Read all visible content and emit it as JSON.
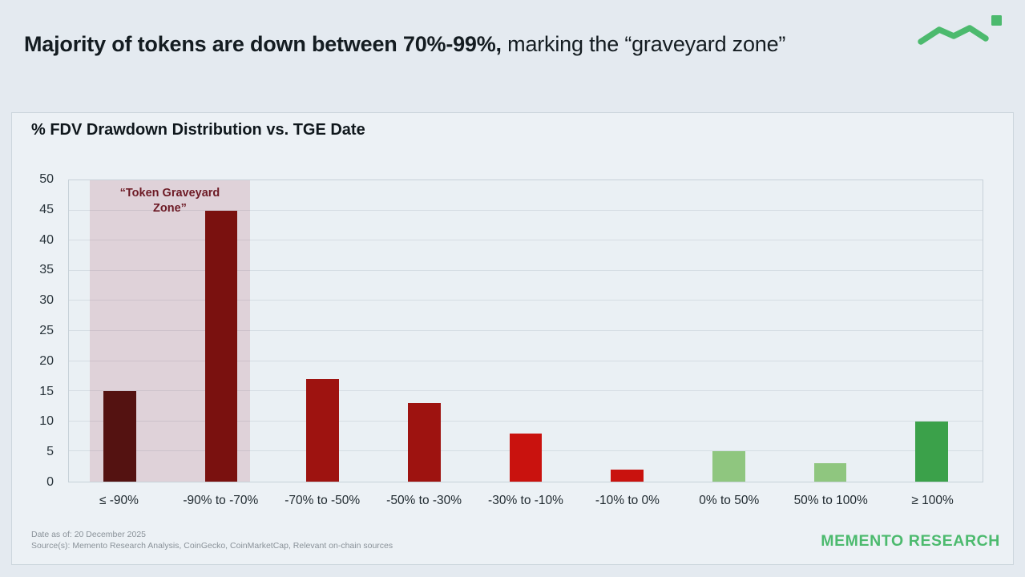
{
  "header": {
    "title_bold": "Majority of tokens are down between 70%-99%,",
    "title_regular": " marking the “graveyard zone”"
  },
  "brand": {
    "name": "MEMENTO RESEARCH",
    "accent_color": "#4cba6e",
    "logo_icon": "zigzag-line-with-square"
  },
  "footnotes": {
    "date": "Date as of: 20 December 2025",
    "sources": "Source(s): Memento Research Analysis, CoinGecko, CoinMarketCap, Relevant on-chain sources"
  },
  "chart_data": {
    "type": "bar",
    "title": "% FDV Drawdown Distribution vs. TGE Date",
    "categories": [
      "≤ -90%",
      "-90% to -70%",
      "-70% to -50%",
      "-50% to -30%",
      "-30% to -10%",
      "-10% to 0%",
      "0% to 50%",
      "50% to 100%",
      "≥ 100%"
    ],
    "values": [
      15,
      45,
      17,
      13,
      8,
      2,
      5,
      3,
      10
    ],
    "bar_colors": [
      "#541211",
      "#7a110f",
      "#9e1310",
      "#9e1310",
      "#c9120e",
      "#c9120e",
      "#8fc67f",
      "#8fc67f",
      "#3ba14a"
    ],
    "xlabel": "",
    "ylabel": "",
    "ylim": [
      0,
      50
    ],
    "ytick_step": 5,
    "grid": true,
    "legend": false,
    "annotation": {
      "label": "“Token Graveyard Zone”",
      "covers_categories": [
        "≤ -90%",
        "-90% to -70%"
      ],
      "zone_color": "rgba(170,55,80,0.16)",
      "label_color": "#6d1a25"
    }
  }
}
